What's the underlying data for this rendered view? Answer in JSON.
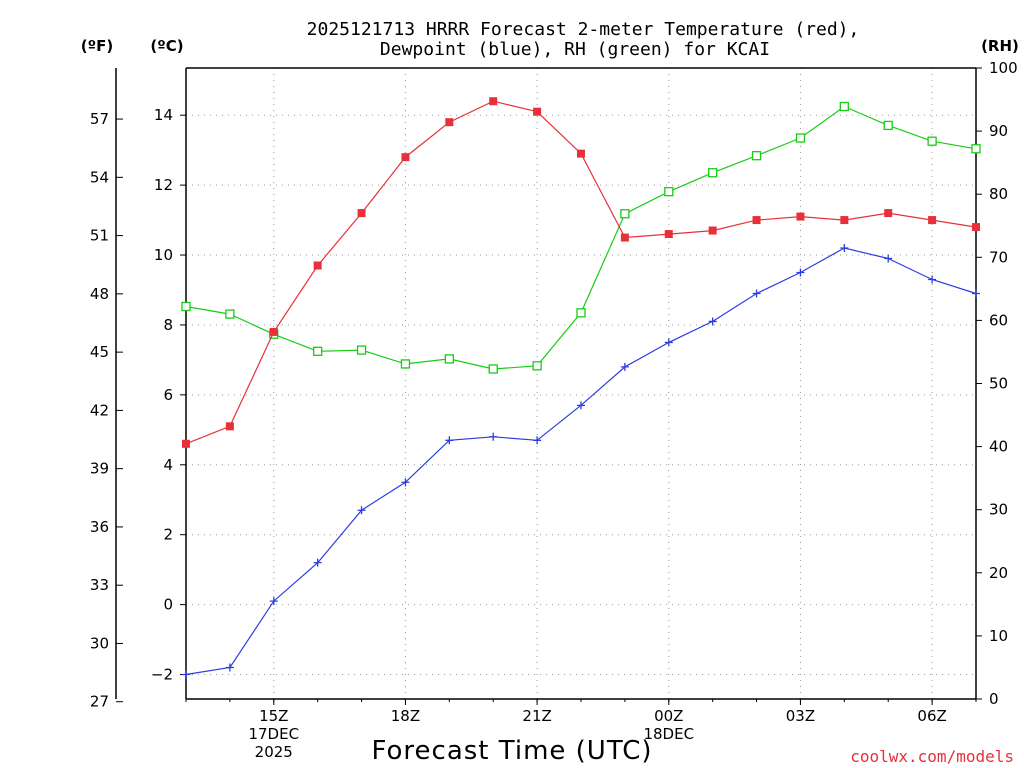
{
  "title": {
    "line1": "2025121713 HRRR Forecast 2-meter Temperature (red),",
    "line2": "Dewpoint (blue), RH (green) for KCAI"
  },
  "units": {
    "f": "(ºF)",
    "c": "(ºC)",
    "rh": "(RH)"
  },
  "xlabel": "Forecast Time (UTC)",
  "credit": "coolwx.com/models",
  "colors": {
    "temp": "#e8303a",
    "dewpoint": "#2b3de0",
    "rh": "#18cc18"
  },
  "chart_data": {
    "type": "line",
    "title": "2025121713 HRRR Forecast 2-meter Temperature (red), Dewpoint (blue), RH (green) for KCAI",
    "xlabel": "Forecast Time (UTC)",
    "x_hours": [
      13,
      14,
      15,
      16,
      17,
      18,
      19,
      20,
      21,
      22,
      23,
      24,
      25,
      26,
      27,
      28,
      29,
      30,
      31
    ],
    "xlim": [
      13,
      31
    ],
    "x_ticks": [
      {
        "hour": 15,
        "lines": [
          "15Z",
          "17DEC",
          "2025"
        ]
      },
      {
        "hour": 18,
        "lines": [
          "18Z"
        ]
      },
      {
        "hour": 21,
        "lines": [
          "21Z"
        ]
      },
      {
        "hour": 24,
        "lines": [
          "00Z",
          "18DEC"
        ]
      },
      {
        "hour": 27,
        "lines": [
          "03Z"
        ]
      },
      {
        "hour": 30,
        "lines": [
          "06Z"
        ]
      }
    ],
    "y_celsius": {
      "label": "(ºC)",
      "ylim": [
        -2.7,
        15.35
      ],
      "ticks": [
        "-2",
        "0",
        "2",
        "4",
        "6",
        "8",
        "10",
        "12",
        "14"
      ]
    },
    "y_fahrenheit": {
      "label": "(ºF)",
      "ticks": [
        "27",
        "30",
        "33",
        "36",
        "39",
        "42",
        "45",
        "48",
        "51",
        "54",
        "57"
      ]
    },
    "y_rh": {
      "label": "(RH)",
      "ylim": [
        0,
        100
      ],
      "ticks": [
        "0",
        "10",
        "20",
        "30",
        "40",
        "50",
        "60",
        "70",
        "80",
        "90",
        "100"
      ]
    },
    "series": [
      {
        "name": "Temperature",
        "axis": "celsius",
        "color": "#e8303a",
        "marker": "filled-square",
        "values": [
          4.6,
          5.1,
          7.8,
          9.7,
          11.2,
          12.8,
          13.8,
          14.4,
          14.1,
          12.9,
          10.5,
          10.6,
          10.7,
          11.0,
          11.1,
          11.0,
          11.2,
          11.0,
          10.8
        ]
      },
      {
        "name": "Dewpoint",
        "axis": "celsius",
        "color": "#2b3de0",
        "marker": "plus",
        "values": [
          -2.0,
          -1.8,
          0.1,
          1.2,
          2.7,
          3.5,
          4.7,
          4.8,
          4.7,
          5.7,
          6.8,
          7.5,
          8.1,
          8.9,
          9.5,
          10.2,
          9.9,
          9.3,
          8.9
        ]
      },
      {
        "name": "RH",
        "axis": "rh",
        "color": "#18cc18",
        "marker": "open-square",
        "values": [
          62.2,
          61.0,
          57.8,
          55.1,
          55.3,
          53.1,
          53.9,
          52.3,
          52.8,
          61.2,
          76.9,
          80.4,
          83.4,
          86.1,
          88.9,
          93.9,
          90.9,
          88.4,
          87.2
        ]
      }
    ]
  }
}
